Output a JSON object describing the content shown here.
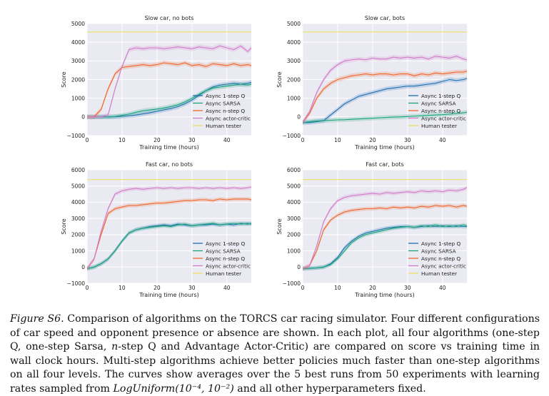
{
  "caption": {
    "label": "Figure S6.",
    "text_before_n": "Comparison of algorithms on the TORCS car racing simulator. Four different configurations of car speed and opponent presence or absence are shown. In each plot, all four algorithms (one-step Q, one-step Sarsa,",
    "n_italic": "n",
    "text_after_n": "-step Q and Advantage Actor-Critic) are compared on score vs training time in wall clock hours. Multi-step algorithms achieve better policies much faster than one-step algorithms on all four levels. The curves show averages over the 5 best runs from 50 experiments with learning rates sampled from",
    "math": "LogUniform(10⁻⁴, 10⁻²)",
    "text_end": "and all other hyperparameters fixed."
  },
  "colors": {
    "plot_bg": "#eaeaf2",
    "grid": "#ffffff",
    "Async 1-step Q": "#1f6fb2",
    "Async SARSA": "#1aa37d",
    "Async n-step Q": "#f0652a",
    "Async actor-critic": "#d17bc9",
    "Human tester": "#ece063"
  },
  "chart_data": [
    {
      "type": "line",
      "title": "Slow car, no bots",
      "xlabel": "Training time (hours)",
      "ylabel": "Score",
      "xlim": [
        0,
        47
      ],
      "ylim": [
        -1000,
        5000
      ],
      "xticks": [
        0,
        10,
        20,
        30,
        40
      ],
      "yticks": [
        -1000,
        0,
        1000,
        2000,
        3000,
        4000,
        5000
      ],
      "ytick_labels": [
        "−1000",
        "0",
        "1000",
        "2000",
        "3000",
        "4000",
        "5000"
      ],
      "legend_position": "lower right",
      "grid": true,
      "x": [
        0,
        2,
        4,
        6,
        8,
        10,
        12,
        14,
        16,
        18,
        20,
        22,
        24,
        26,
        28,
        30,
        32,
        34,
        36,
        38,
        40,
        42,
        44,
        46,
        47
      ],
      "series": [
        {
          "name": "Async 1-step Q",
          "values": [
            0,
            0,
            0,
            0,
            10,
            30,
            60,
            100,
            160,
            220,
            300,
            380,
            450,
            550,
            700,
            900,
            1150,
            1400,
            1600,
            1700,
            1750,
            1800,
            1750,
            1800,
            1850
          ]
        },
        {
          "name": "Async SARSA",
          "values": [
            0,
            0,
            0,
            0,
            20,
            80,
            150,
            250,
            330,
            380,
            420,
            480,
            560,
            650,
            800,
            1000,
            1200,
            1400,
            1550,
            1600,
            1650,
            1700,
            1750,
            1700,
            1750
          ]
        },
        {
          "name": "Async n-step Q",
          "values": [
            0,
            0,
            400,
            1500,
            2300,
            2650,
            2700,
            2750,
            2800,
            2750,
            2800,
            2900,
            2850,
            2800,
            2900,
            2750,
            2800,
            2700,
            2850,
            2800,
            2750,
            2850,
            2750,
            2800,
            2750
          ]
        },
        {
          "name": "Async actor-critic",
          "values": [
            0,
            0,
            0,
            100,
            1500,
            2700,
            3600,
            3700,
            3650,
            3700,
            3700,
            3650,
            3700,
            3750,
            3700,
            3650,
            3750,
            3700,
            3650,
            3800,
            3700,
            3600,
            3800,
            3500,
            3700
          ]
        },
        {
          "name": "Human tester",
          "values": [
            4550,
            4550,
            4550,
            4550,
            4550,
            4550,
            4550,
            4550,
            4550,
            4550,
            4550,
            4550,
            4550,
            4550,
            4550,
            4550,
            4550,
            4550,
            4550,
            4550,
            4550,
            4550,
            4550,
            4550,
            4550
          ]
        }
      ]
    },
    {
      "type": "line",
      "title": "Slow car, bots",
      "xlabel": "Training time (hours)",
      "ylabel": "Score",
      "xlim": [
        0,
        47
      ],
      "ylim": [
        -1000,
        5000
      ],
      "xticks": [
        0,
        10,
        20,
        30,
        40
      ],
      "yticks": [
        -1000,
        0,
        1000,
        2000,
        3000,
        4000,
        5000
      ],
      "ytick_labels": [
        "−1000",
        "0",
        "1000",
        "2000",
        "3000",
        "4000",
        "5000"
      ],
      "legend_position": "lower right",
      "grid": true,
      "x": [
        0,
        2,
        4,
        6,
        8,
        10,
        12,
        14,
        16,
        18,
        20,
        22,
        24,
        26,
        28,
        30,
        32,
        34,
        36,
        38,
        40,
        42,
        44,
        46,
        47
      ],
      "series": [
        {
          "name": "Async 1-step Q",
          "values": [
            -300,
            -300,
            -250,
            -200,
            100,
            400,
            700,
            900,
            1100,
            1200,
            1300,
            1400,
            1500,
            1550,
            1600,
            1650,
            1650,
            1700,
            1750,
            1800,
            1900,
            2000,
            1950,
            2000,
            2050
          ]
        },
        {
          "name": "Async SARSA",
          "values": [
            -300,
            -250,
            -220,
            -200,
            -180,
            -160,
            -150,
            -130,
            -110,
            -90,
            -70,
            -50,
            -30,
            -10,
            0,
            20,
            40,
            60,
            80,
            100,
            120,
            150,
            180,
            220,
            250
          ]
        },
        {
          "name": "Async n-step Q",
          "values": [
            -300,
            200,
            1000,
            1500,
            1800,
            2000,
            2100,
            2200,
            2250,
            2300,
            2250,
            2300,
            2300,
            2250,
            2300,
            2300,
            2200,
            2300,
            2250,
            2350,
            2300,
            2350,
            2400,
            2400,
            2450
          ]
        },
        {
          "name": "Async actor-critic",
          "values": [
            -300,
            300,
            1300,
            2000,
            2500,
            2800,
            3000,
            3050,
            3100,
            3050,
            3150,
            3100,
            3100,
            3200,
            3150,
            3200,
            3150,
            3200,
            3100,
            3250,
            3200,
            3150,
            3250,
            3100,
            3050
          ]
        },
        {
          "name": "Human tester",
          "values": [
            4550,
            4550,
            4550,
            4550,
            4550,
            4550,
            4550,
            4550,
            4550,
            4550,
            4550,
            4550,
            4550,
            4550,
            4550,
            4550,
            4550,
            4550,
            4550,
            4550,
            4550,
            4550,
            4550,
            4550,
            4550
          ]
        }
      ]
    },
    {
      "type": "line",
      "title": "Fast car, no bots",
      "xlabel": "Training time (hours)",
      "ylabel": "Score",
      "xlim": [
        0,
        47
      ],
      "ylim": [
        -1000,
        6000
      ],
      "xticks": [
        0,
        10,
        20,
        30,
        40
      ],
      "yticks": [
        -1000,
        0,
        1000,
        2000,
        3000,
        4000,
        5000,
        6000
      ],
      "ytick_labels": [
        "−1000",
        "0",
        "1000",
        "2000",
        "3000",
        "4000",
        "5000",
        "6000"
      ],
      "legend_position": "lower right",
      "grid": true,
      "x": [
        0,
        2,
        4,
        6,
        8,
        10,
        12,
        14,
        16,
        18,
        20,
        22,
        24,
        26,
        28,
        30,
        32,
        34,
        36,
        38,
        40,
        42,
        44,
        46,
        47
      ],
      "series": [
        {
          "name": "Async 1-step Q",
          "values": [
            -100,
            0,
            200,
            500,
            1000,
            1600,
            2100,
            2300,
            2400,
            2500,
            2550,
            2600,
            2550,
            2650,
            2600,
            2550,
            2600,
            2600,
            2650,
            2600,
            2650,
            2600,
            2700,
            2650,
            2700
          ]
        },
        {
          "name": "Async SARSA",
          "values": [
            -100,
            0,
            200,
            500,
            1000,
            1600,
            2100,
            2300,
            2400,
            2450,
            2500,
            2550,
            2500,
            2600,
            2650,
            2550,
            2600,
            2650,
            2700,
            2600,
            2650,
            2700,
            2650,
            2700,
            2650
          ]
        },
        {
          "name": "Async n-step Q",
          "values": [
            -100,
            500,
            2000,
            3300,
            3600,
            3700,
            3800,
            3800,
            3850,
            3900,
            3950,
            3950,
            4000,
            4050,
            4100,
            4100,
            4150,
            4150,
            4100,
            4200,
            4150,
            4200,
            4200,
            4200,
            4150
          ]
        },
        {
          "name": "Async actor-critic",
          "values": [
            -100,
            500,
            2200,
            3600,
            4500,
            4700,
            4800,
            4850,
            4800,
            4850,
            4900,
            4850,
            4900,
            4850,
            4900,
            4900,
            4850,
            4900,
            4850,
            4900,
            4850,
            4900,
            4850,
            4900,
            4950
          ]
        },
        {
          "name": "Human tester",
          "values": [
            5400,
            5400,
            5400,
            5400,
            5400,
            5400,
            5400,
            5400,
            5400,
            5400,
            5400,
            5400,
            5400,
            5400,
            5400,
            5400,
            5400,
            5400,
            5400,
            5400,
            5400,
            5400,
            5400,
            5400,
            5400
          ]
        }
      ]
    },
    {
      "type": "line",
      "title": "Fast car, bots",
      "xlabel": "Training time (hours)",
      "ylabel": "Score",
      "xlim": [
        0,
        47
      ],
      "ylim": [
        -1000,
        6000
      ],
      "xticks": [
        0,
        10,
        20,
        30,
        40
      ],
      "yticks": [
        -1000,
        0,
        1000,
        2000,
        3000,
        4000,
        5000,
        6000
      ],
      "ytick_labels": [
        "−1000",
        "0",
        "1000",
        "2000",
        "3000",
        "4000",
        "5000",
        "6000"
      ],
      "legend_position": "lower right",
      "grid": true,
      "x": [
        0,
        2,
        4,
        6,
        8,
        10,
        12,
        14,
        16,
        18,
        20,
        22,
        24,
        26,
        28,
        30,
        32,
        34,
        36,
        38,
        40,
        42,
        44,
        46,
        47
      ],
      "series": [
        {
          "name": "Async 1-step Q",
          "values": [
            -100,
            -80,
            -50,
            0,
            200,
            600,
            1200,
            1600,
            1900,
            2100,
            2200,
            2300,
            2400,
            2450,
            2500,
            2500,
            2450,
            2500,
            2550,
            2500,
            2550,
            2500,
            2550,
            2500,
            2500
          ]
        },
        {
          "name": "Async SARSA",
          "values": [
            -100,
            -80,
            -50,
            0,
            150,
            500,
            1000,
            1500,
            1800,
            2000,
            2100,
            2200,
            2300,
            2400,
            2450,
            2500,
            2450,
            2550,
            2500,
            2600,
            2500,
            2550,
            2500,
            2600,
            2550
          ]
        },
        {
          "name": "Async n-step Q",
          "values": [
            -100,
            100,
            1000,
            2300,
            2900,
            3200,
            3400,
            3500,
            3550,
            3600,
            3600,
            3650,
            3600,
            3700,
            3650,
            3700,
            3650,
            3750,
            3700,
            3800,
            3750,
            3800,
            3700,
            3800,
            3750
          ]
        },
        {
          "name": "Async actor-critic",
          "values": [
            -100,
            100,
            1300,
            2800,
            3600,
            4100,
            4300,
            4400,
            4450,
            4500,
            4550,
            4500,
            4600,
            4550,
            4600,
            4650,
            4600,
            4700,
            4650,
            4700,
            4650,
            4750,
            4700,
            4800,
            4900
          ]
        },
        {
          "name": "Human tester",
          "values": [
            5400,
            5400,
            5400,
            5400,
            5400,
            5400,
            5400,
            5400,
            5400,
            5400,
            5400,
            5400,
            5400,
            5400,
            5400,
            5400,
            5400,
            5400,
            5400,
            5400,
            5400,
            5400,
            5400,
            5400,
            5400
          ]
        }
      ]
    }
  ]
}
